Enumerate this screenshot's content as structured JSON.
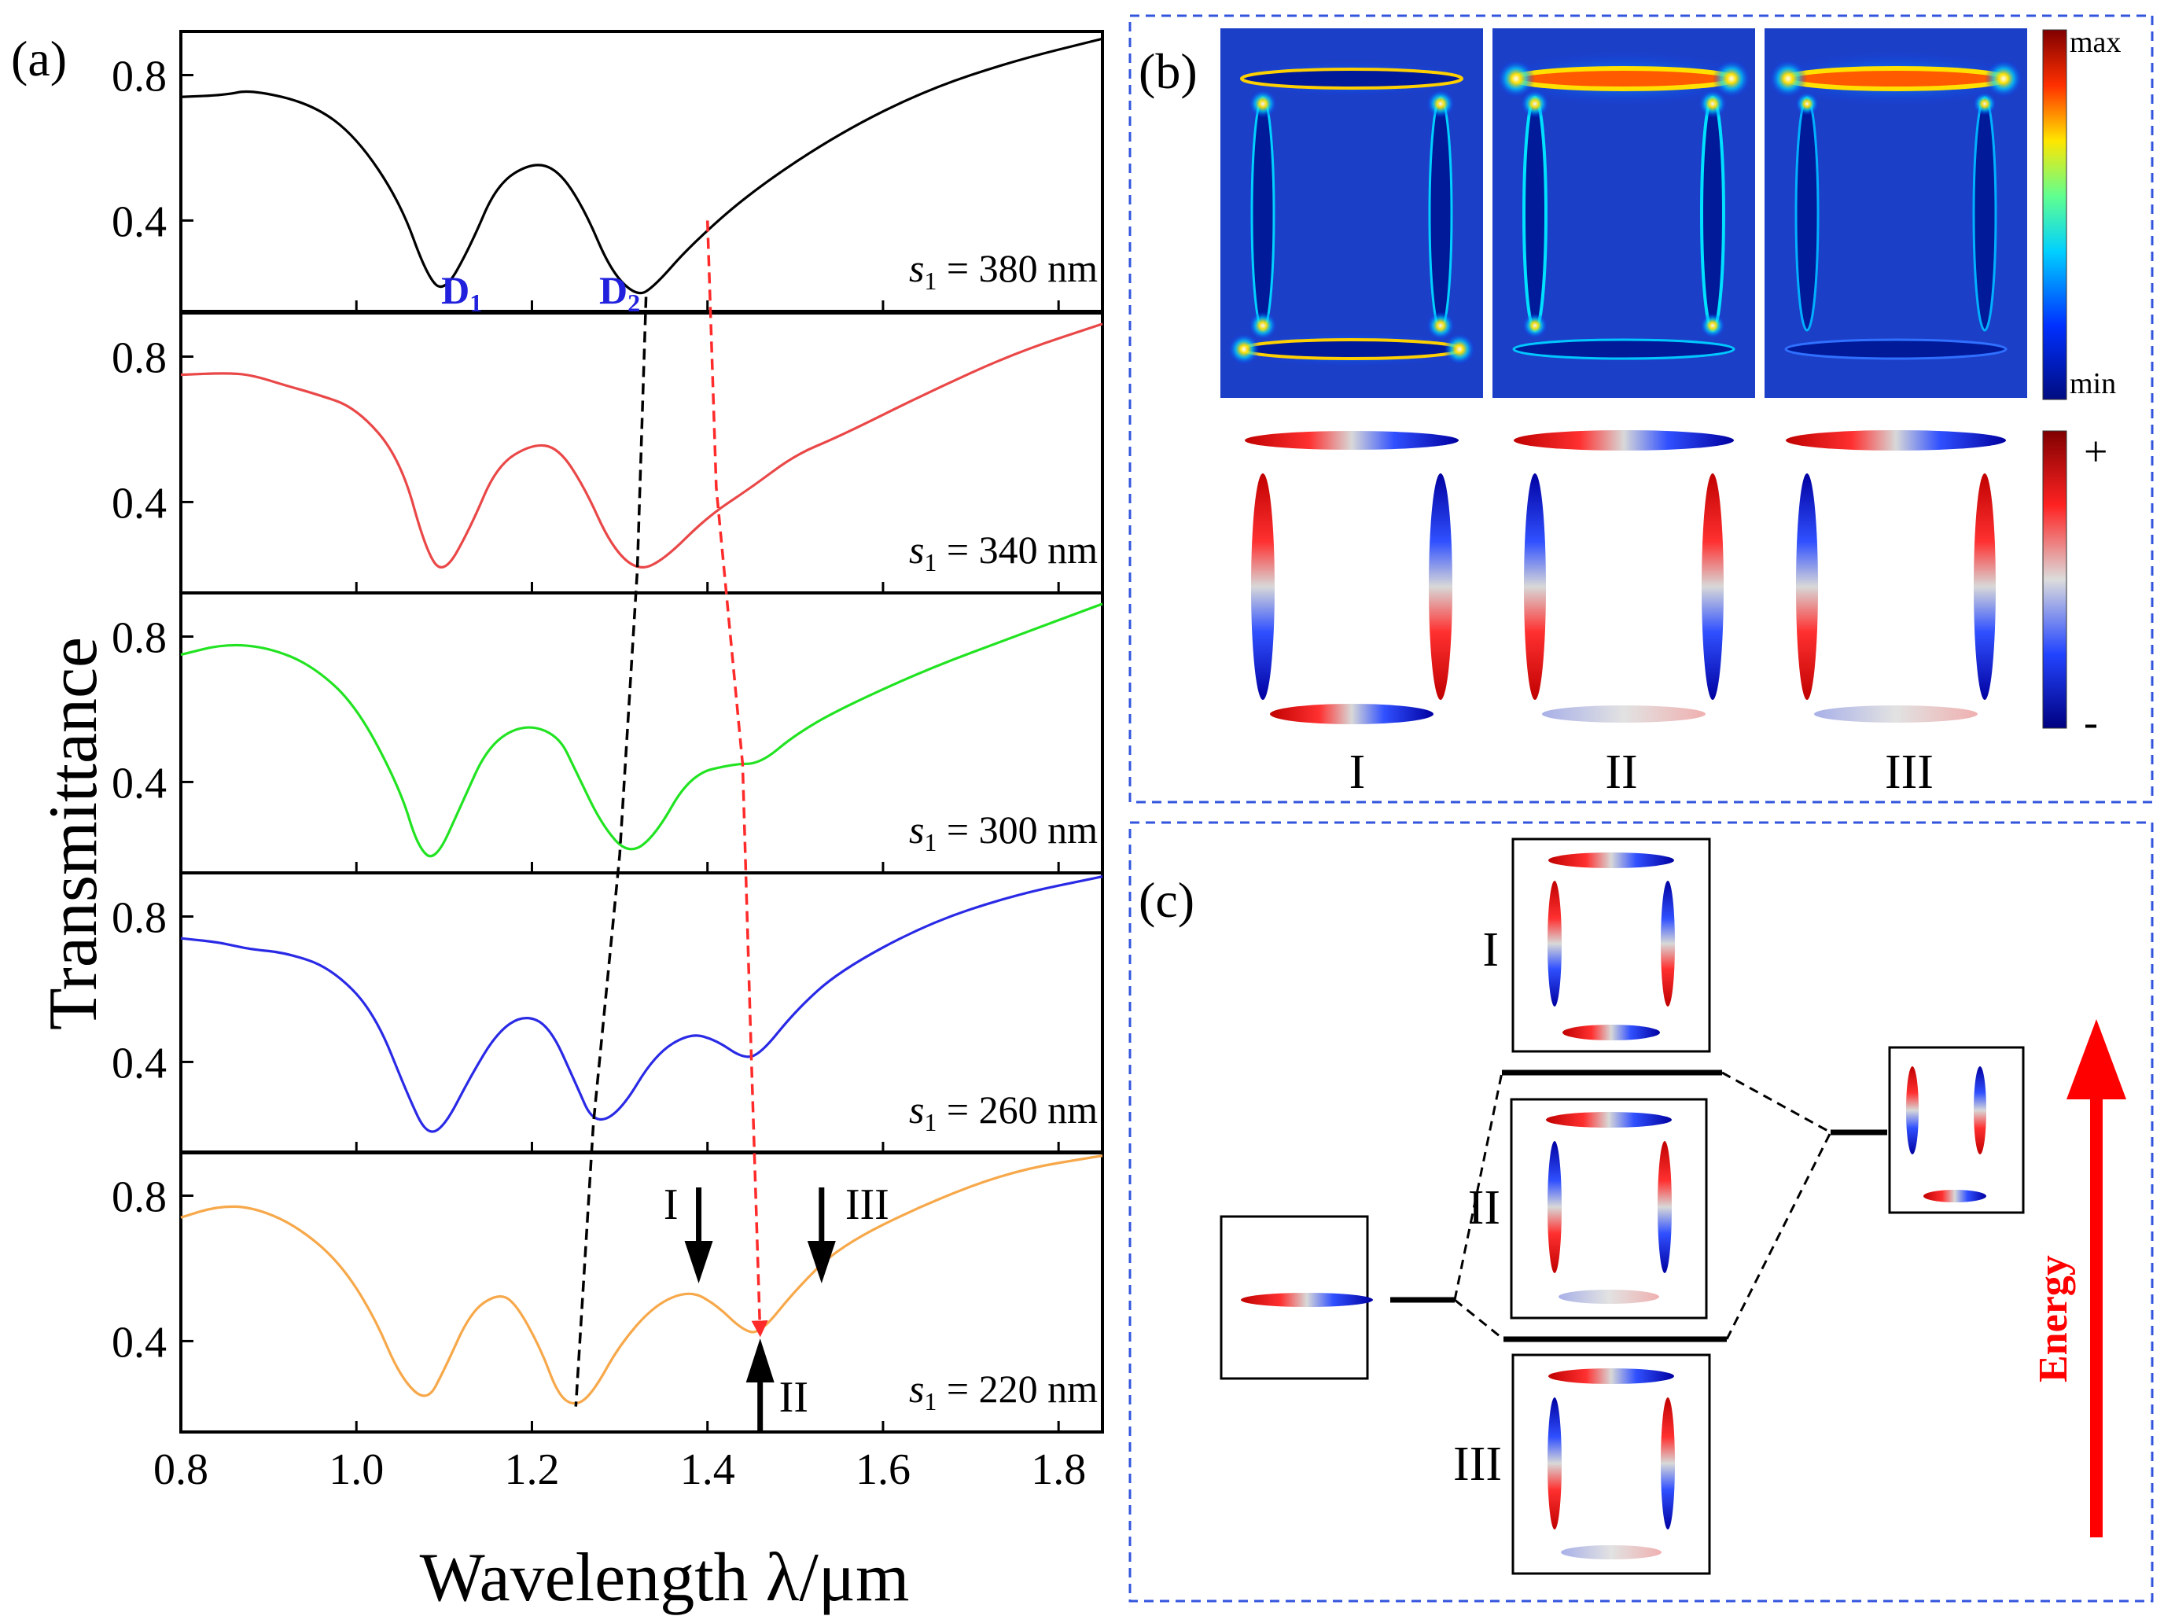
{
  "panel_labels": {
    "a": "(a)",
    "b": "(b)",
    "c": "(c)"
  },
  "chart_data": {
    "type": "line",
    "title": "",
    "xlabel": "Wavelength λ/μm",
    "ylabel": "Transmittance",
    "xlim": [
      0.8,
      1.85
    ],
    "ylim": [
      0.15,
      0.92
    ],
    "xticks": [
      "0.8",
      "1.0",
      "1.2",
      "1.4",
      "1.6",
      "1.8"
    ],
    "yticks": [
      "0.4",
      "0.8"
    ],
    "series": [
      {
        "name": "s1 = 380 nm",
        "color": "#000000",
        "x": [
          0.8,
          0.85,
          0.88,
          0.95,
          1.0,
          1.05,
          1.08,
          1.1,
          1.13,
          1.16,
          1.2,
          1.23,
          1.26,
          1.29,
          1.32,
          1.34,
          1.38,
          1.45,
          1.55,
          1.65,
          1.75,
          1.85
        ],
        "y": [
          0.74,
          0.745,
          0.76,
          0.72,
          0.63,
          0.45,
          0.25,
          0.2,
          0.33,
          0.5,
          0.56,
          0.54,
          0.43,
          0.26,
          0.19,
          0.22,
          0.33,
          0.48,
          0.64,
          0.76,
          0.84,
          0.9
        ]
      },
      {
        "name": "s1 = 340 nm",
        "color": "#ea4848",
        "x": [
          0.8,
          0.85,
          0.88,
          0.92,
          0.95,
          1.0,
          1.05,
          1.08,
          1.1,
          1.13,
          1.16,
          1.2,
          1.23,
          1.26,
          1.29,
          1.32,
          1.35,
          1.4,
          1.45,
          1.5,
          1.55,
          1.65,
          1.75,
          1.85
        ],
        "y": [
          0.75,
          0.755,
          0.75,
          0.72,
          0.7,
          0.66,
          0.52,
          0.26,
          0.2,
          0.33,
          0.5,
          0.56,
          0.55,
          0.44,
          0.28,
          0.21,
          0.24,
          0.36,
          0.44,
          0.53,
          0.58,
          0.7,
          0.81,
          0.89
        ]
      },
      {
        "name": "s1 = 300 nm",
        "color": "#22e322",
        "x": [
          0.8,
          0.85,
          0.9,
          0.95,
          1.0,
          1.05,
          1.07,
          1.09,
          1.12,
          1.15,
          1.19,
          1.23,
          1.25,
          1.28,
          1.31,
          1.34,
          1.38,
          1.43,
          1.46,
          1.5,
          1.55,
          1.65,
          1.75,
          1.85
        ],
        "y": [
          0.75,
          0.78,
          0.77,
          0.72,
          0.61,
          0.38,
          0.22,
          0.18,
          0.34,
          0.5,
          0.56,
          0.53,
          0.43,
          0.28,
          0.2,
          0.25,
          0.42,
          0.45,
          0.45,
          0.53,
          0.6,
          0.71,
          0.8,
          0.89
        ]
      },
      {
        "name": "s1 = 260 nm",
        "color": "#2a2ae6",
        "x": [
          0.8,
          0.84,
          0.86,
          0.88,
          0.92,
          0.97,
          1.02,
          1.06,
          1.08,
          1.1,
          1.13,
          1.16,
          1.19,
          1.22,
          1.25,
          1.27,
          1.3,
          1.34,
          1.38,
          1.41,
          1.44,
          1.46,
          1.5,
          1.55,
          1.65,
          1.75,
          1.85
        ],
        "y": [
          0.74,
          0.73,
          0.72,
          0.71,
          0.7,
          0.66,
          0.54,
          0.3,
          0.2,
          0.22,
          0.36,
          0.48,
          0.53,
          0.5,
          0.34,
          0.23,
          0.26,
          0.42,
          0.48,
          0.46,
          0.41,
          0.42,
          0.54,
          0.65,
          0.78,
          0.86,
          0.91
        ]
      },
      {
        "name": "s1 = 220 nm",
        "color": "#f7a84a",
        "x": [
          0.8,
          0.84,
          0.88,
          0.93,
          0.98,
          1.02,
          1.05,
          1.08,
          1.1,
          1.13,
          1.16,
          1.18,
          1.21,
          1.23,
          1.25,
          1.27,
          1.3,
          1.34,
          1.38,
          1.41,
          1.44,
          1.46,
          1.5,
          1.55,
          1.65,
          1.75,
          1.85
        ],
        "y": [
          0.74,
          0.77,
          0.77,
          0.72,
          0.62,
          0.47,
          0.3,
          0.23,
          0.32,
          0.48,
          0.53,
          0.51,
          0.38,
          0.25,
          0.22,
          0.26,
          0.39,
          0.5,
          0.54,
          0.5,
          0.43,
          0.42,
          0.54,
          0.66,
          0.78,
          0.87,
          0.91
        ]
      }
    ],
    "dip_labels": [
      {
        "text": "D1",
        "main": "D",
        "sub": "1",
        "x": 1.12,
        "panel": 0
      },
      {
        "text": "D2",
        "main": "D",
        "sub": "2",
        "x": 1.3,
        "panel": 0
      }
    ],
    "tracks": [
      {
        "name": "D2 shift",
        "color": "#000000",
        "points": [
          [
            1.33,
            0.19,
            0
          ],
          [
            1.32,
            0.21,
            1
          ],
          [
            1.3,
            0.2,
            2
          ],
          [
            1.27,
            0.23,
            3
          ],
          [
            1.25,
            0.22,
            4
          ]
        ]
      },
      {
        "name": "mode shift",
        "color": "#ff2a2a",
        "points": [
          [
            1.4,
            0.4,
            0
          ],
          [
            1.41,
            0.44,
            1
          ],
          [
            1.44,
            0.45,
            2
          ],
          [
            1.45,
            0.41,
            3
          ],
          [
            1.46,
            0.42,
            4
          ]
        ]
      }
    ],
    "markers": [
      {
        "label": "I",
        "x": 1.39,
        "direction": "down"
      },
      {
        "label": "II",
        "x": 1.46,
        "direction": "up"
      },
      {
        "label": "III",
        "x": 1.53,
        "direction": "down"
      }
    ]
  },
  "field_maps": {
    "colorbar_max": "max",
    "colorbar_min": "min"
  },
  "charge_maps": {
    "colorbar_plus": "+",
    "colorbar_minus": "-",
    "labels": [
      "I",
      "II",
      "III"
    ]
  },
  "energy_diagram": {
    "labels": [
      "I",
      "II",
      "III"
    ],
    "arrow_label": "Energy"
  }
}
